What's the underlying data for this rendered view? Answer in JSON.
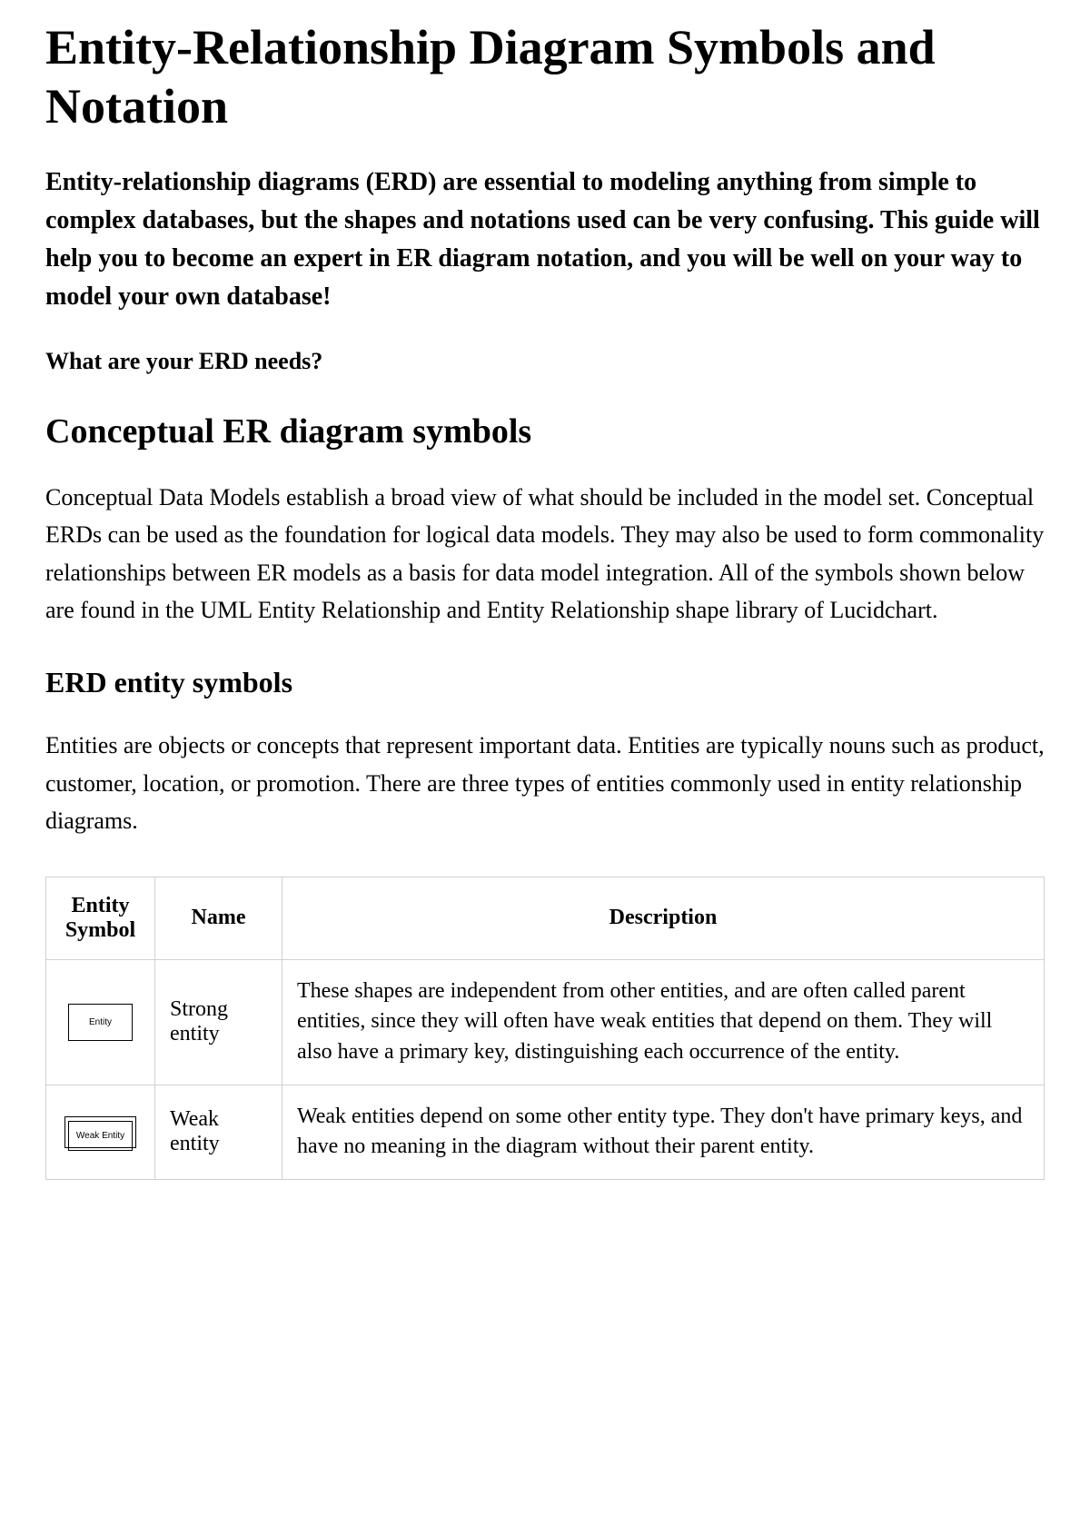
{
  "title": "Entity-Relationship Diagram Symbols and Notation",
  "intro": "Entity-relationship diagrams (ERD) are essential to modeling anything from simple to complex databases, but the shapes and notations used can be very confusing. This guide will help you to become an expert in ER diagram notation, and you will be well on your way to model your own database!",
  "question": "What are your ERD needs?",
  "section1": {
    "heading": "Conceptual ER diagram symbols",
    "body": "Conceptual Data Models establish a broad view of what should be included in the model set. Conceptual ERDs can be used as the foundation for logical data models. They may also be used to form commonality relationships between ER models as a basis for data model integration. All of the symbols shown below are found in the UML Entity Relationship and Entity Relationship shape library of Lucidchart."
  },
  "section2": {
    "heading": "ERD entity symbols",
    "body": "Entities are objects or concepts that represent important data. Entities are typically nouns such as product, customer, location, or promotion. There are three types of entities commonly used in entity relationship diagrams."
  },
  "table": {
    "columns": [
      "Entity Symbol",
      "Name",
      "Description"
    ],
    "rows": [
      {
        "symbol_type": "strong",
        "symbol_label": "Entity",
        "name": "Strong entity",
        "description": "These shapes are independent from other entities, and are often called parent entities, since they will often have weak entities that depend on them. They will also have a primary key, distinguishing each occurrence of the entity."
      },
      {
        "symbol_type": "weak",
        "symbol_label": "Weak Entity",
        "name": "Weak entity",
        "description": "Weak entities depend on some other entity type. They don't have primary keys, and have no meaning in the diagram without their parent entity."
      }
    ],
    "border_color": "#d0d0d0",
    "symbol_border_color": "#000000",
    "background_color": "#ffffff"
  }
}
